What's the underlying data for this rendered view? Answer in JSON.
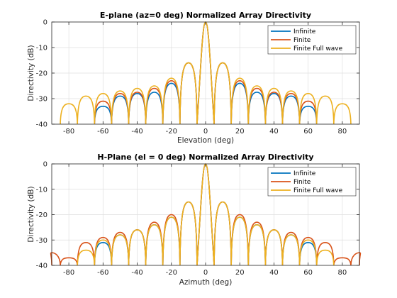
{
  "colors": {
    "infinite": "#0072BD",
    "finite": "#D95319",
    "full_wave": "#EDB120",
    "grid": "#dfdfdf",
    "axes": "#262626"
  },
  "chart_data": [
    {
      "type": "line",
      "title": "E-plane (az=0 deg) Normalized Array Directivity",
      "xlabel": "Elevation (deg)",
      "ylabel": "Directivity (dB)",
      "xlim": [
        -90,
        90
      ],
      "ylim": [
        -40,
        0
      ],
      "xticks": [
        -80,
        -60,
        -40,
        -20,
        0,
        20,
        40,
        60,
        80
      ],
      "yticks": [
        -40,
        -30,
        -20,
        -10,
        0
      ],
      "grid": true,
      "legend_position": "top-right",
      "x_step": 10,
      "series": [
        {
          "name": "Infinite",
          "x": [
            -90,
            -80,
            -70,
            -60,
            -50,
            -40,
            -30,
            -20,
            -10,
            0,
            10,
            20,
            30,
            40,
            50,
            60,
            70,
            80,
            90
          ],
          "peaks": [
            null,
            null,
            null,
            -33,
            -29,
            -28,
            -27.5,
            -24,
            -16,
            0,
            -16,
            -24,
            -27.5,
            -28,
            -29,
            -33,
            null,
            null,
            null
          ]
        },
        {
          "name": "Finite",
          "x": [
            -90,
            -80,
            -70,
            -60,
            -50,
            -40,
            -30,
            -20,
            -10,
            0,
            10,
            20,
            30,
            40,
            50,
            60,
            70,
            80,
            90
          ],
          "peaks": [
            null,
            null,
            null,
            -31,
            -28,
            -27.5,
            -26,
            -23,
            -16,
            0,
            -16,
            -23,
            -26,
            -27.5,
            -28,
            -31,
            null,
            null,
            null
          ]
        },
        {
          "name": "Finite Full wave",
          "x": [
            -90,
            -80,
            -70,
            -60,
            -50,
            -40,
            -30,
            -20,
            -10,
            0,
            10,
            20,
            30,
            40,
            50,
            60,
            70,
            80,
            90
          ],
          "peaks": [
            null,
            -32,
            -29,
            -28,
            -27,
            -26,
            -25,
            -22,
            -16,
            0,
            -16,
            -22,
            -25,
            -26,
            -27,
            -28,
            -29,
            -32,
            null
          ]
        }
      ]
    },
    {
      "type": "line",
      "title": "H-Plane (el = 0 deg) Normalized Array Directivity",
      "xlabel": "Azimuth (deg)",
      "ylabel": "Directivity (dB)",
      "xlim": [
        -90,
        90
      ],
      "ylim": [
        -40,
        0
      ],
      "xticks": [
        -80,
        -60,
        -40,
        -20,
        0,
        20,
        40,
        60,
        80
      ],
      "yticks": [
        -40,
        -30,
        -20,
        -10,
        0
      ],
      "grid": true,
      "legend_position": "top-right",
      "x_step": 10,
      "series": [
        {
          "name": "Infinite",
          "x": [
            -90,
            -80,
            -70,
            -60,
            -50,
            -40,
            -30,
            -20,
            -10,
            0,
            10,
            20,
            30,
            40,
            50,
            60,
            70,
            80,
            90
          ],
          "peaks": [
            null,
            null,
            null,
            -31,
            -28,
            -26,
            -24,
            -21,
            -15,
            0,
            -15,
            -21,
            -24,
            -26,
            -28,
            -31,
            null,
            null,
            null
          ]
        },
        {
          "name": "Finite",
          "x": [
            -90,
            -80,
            -70,
            -60,
            -50,
            -40,
            -30,
            -20,
            -10,
            0,
            10,
            20,
            30,
            40,
            50,
            60,
            70,
            80,
            90
          ],
          "peaks": [
            -35,
            -37,
            -31,
            -29,
            -27,
            -26,
            -23,
            -20,
            -15,
            0,
            -15,
            -20,
            -23,
            -26,
            -27,
            -29,
            -31,
            -37,
            -35
          ]
        },
        {
          "name": "Finite Full wave",
          "x": [
            -90,
            -80,
            -70,
            -60,
            -50,
            -40,
            -30,
            -20,
            -10,
            0,
            10,
            20,
            30,
            40,
            50,
            60,
            70,
            80,
            90
          ],
          "peaks": [
            null,
            null,
            -34,
            -30,
            -28,
            -26,
            -24,
            -21,
            -15,
            0,
            -15,
            -21,
            -24,
            -26,
            -28,
            -30,
            -34,
            null,
            null
          ]
        }
      ]
    }
  ]
}
